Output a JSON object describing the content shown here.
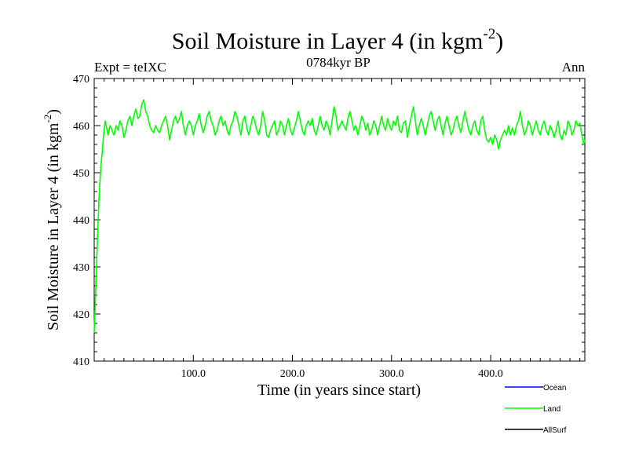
{
  "chart_data": {
    "type": "line",
    "title": "Soil Moisture in Layer 4 (in kgm",
    "title_superscript": "-2",
    "title_close": ")",
    "left_label": "Expt = teIXC",
    "center_label": "0784kyr BP",
    "right_label": "Ann",
    "xlabel": "Time (in years since start)",
    "ylabel": "Soil Moisture in Layer 4 (in kgm",
    "ylabel_superscript": "-2",
    "ylabel_close": ")",
    "xlim": [
      0,
      495
    ],
    "ylim": [
      410,
      470
    ],
    "x_ticks": [
      100,
      200,
      300,
      400
    ],
    "x_tick_labels": [
      "100.0",
      "200.0",
      "300.0",
      "400.0"
    ],
    "y_ticks": [
      410,
      420,
      430,
      440,
      450,
      460,
      470
    ],
    "y_tick_labels": [
      "410",
      "420",
      "430",
      "440",
      "450",
      "460",
      "470"
    ],
    "series": [
      {
        "name": "Ocean",
        "color": "#0000ff",
        "points": []
      },
      {
        "name": "Land",
        "color": "#00ff00",
        "points": [
          [
            0,
            416
          ],
          [
            1,
            422
          ],
          [
            2,
            428
          ],
          [
            3,
            434
          ],
          [
            4,
            440
          ],
          [
            5,
            445
          ],
          [
            6,
            449
          ],
          [
            7,
            452
          ],
          [
            8,
            454
          ],
          [
            9,
            457
          ],
          [
            10,
            459
          ],
          [
            11,
            461
          ],
          [
            12,
            460
          ],
          [
            14,
            458
          ],
          [
            16,
            460
          ],
          [
            18,
            459
          ],
          [
            20,
            458
          ],
          [
            22,
            460
          ],
          [
            24,
            459
          ],
          [
            26,
            461
          ],
          [
            28,
            460
          ],
          [
            30,
            457.5
          ],
          [
            32,
            459
          ],
          [
            34,
            461
          ],
          [
            36,
            462
          ],
          [
            38,
            460
          ],
          [
            40,
            462
          ],
          [
            42,
            463.5
          ],
          [
            44,
            461.5
          ],
          [
            46,
            462
          ],
          [
            48,
            464.5
          ],
          [
            50,
            465.5
          ],
          [
            52,
            463
          ],
          [
            54,
            462
          ],
          [
            56,
            460
          ],
          [
            58,
            459
          ],
          [
            60,
            458.5
          ],
          [
            62,
            460
          ],
          [
            64,
            459
          ],
          [
            66,
            458.5
          ],
          [
            68,
            460
          ],
          [
            70,
            461
          ],
          [
            72,
            462
          ],
          [
            74,
            460
          ],
          [
            76,
            457
          ],
          [
            78,
            459
          ],
          [
            80,
            461
          ],
          [
            82,
            462
          ],
          [
            84,
            460.5
          ],
          [
            86,
            461.5
          ],
          [
            88,
            463
          ],
          [
            90,
            460
          ],
          [
            92,
            458
          ],
          [
            94,
            460
          ],
          [
            96,
            461
          ],
          [
            98,
            460
          ],
          [
            100,
            458
          ],
          [
            102,
            460
          ],
          [
            104,
            461
          ],
          [
            106,
            462.5
          ],
          [
            108,
            460
          ],
          [
            110,
            458.5
          ],
          [
            112,
            460
          ],
          [
            114,
            462
          ],
          [
            116,
            463
          ],
          [
            118,
            461
          ],
          [
            120,
            460
          ],
          [
            122,
            458
          ],
          [
            124,
            459
          ],
          [
            126,
            461
          ],
          [
            128,
            462
          ],
          [
            130,
            460
          ],
          [
            132,
            461
          ],
          [
            134,
            459
          ],
          [
            136,
            458
          ],
          [
            138,
            460
          ],
          [
            140,
            461
          ],
          [
            142,
            463
          ],
          [
            144,
            462
          ],
          [
            146,
            460
          ],
          [
            148,
            458
          ],
          [
            150,
            461
          ],
          [
            152,
            462
          ],
          [
            154,
            459.5
          ],
          [
            156,
            458
          ],
          [
            158,
            460
          ],
          [
            160,
            462
          ],
          [
            162,
            461
          ],
          [
            164,
            459
          ],
          [
            166,
            458
          ],
          [
            168,
            460
          ],
          [
            170,
            463
          ],
          [
            172,
            461
          ],
          [
            174,
            458
          ],
          [
            176,
            457.5
          ],
          [
            178,
            459
          ],
          [
            180,
            460
          ],
          [
            182,
            461
          ],
          [
            184,
            458
          ],
          [
            186,
            459
          ],
          [
            188,
            461
          ],
          [
            190,
            460
          ],
          [
            192,
            458
          ],
          [
            194,
            460
          ],
          [
            196,
            461.5
          ],
          [
            198,
            459
          ],
          [
            200,
            458
          ],
          [
            202,
            459.5
          ],
          [
            204,
            461
          ],
          [
            206,
            463
          ],
          [
            208,
            461
          ],
          [
            210,
            459
          ],
          [
            212,
            458
          ],
          [
            214,
            460
          ],
          [
            216,
            461
          ],
          [
            218,
            460
          ],
          [
            220,
            461.5
          ],
          [
            222,
            459
          ],
          [
            224,
            458
          ],
          [
            226,
            460
          ],
          [
            228,
            462
          ],
          [
            230,
            460
          ],
          [
            232,
            459
          ],
          [
            234,
            461
          ],
          [
            236,
            460
          ],
          [
            238,
            458
          ],
          [
            240,
            461
          ],
          [
            242,
            464
          ],
          [
            244,
            462
          ],
          [
            246,
            459
          ],
          [
            248,
            460
          ],
          [
            250,
            461
          ],
          [
            252,
            460
          ],
          [
            254,
            459
          ],
          [
            256,
            461.5
          ],
          [
            258,
            463
          ],
          [
            260,
            461
          ],
          [
            262,
            459
          ],
          [
            264,
            460
          ],
          [
            266,
            458
          ],
          [
            268,
            460
          ],
          [
            270,
            462
          ],
          [
            272,
            461
          ],
          [
            274,
            459
          ],
          [
            276,
            460.5
          ],
          [
            278,
            458
          ],
          [
            280,
            459
          ],
          [
            282,
            461
          ],
          [
            284,
            460
          ],
          [
            286,
            458
          ],
          [
            288,
            460
          ],
          [
            290,
            462
          ],
          [
            292,
            460
          ],
          [
            294,
            459
          ],
          [
            296,
            461.5
          ],
          [
            298,
            460
          ],
          [
            300,
            459
          ],
          [
            302,
            461
          ],
          [
            304,
            460
          ],
          [
            306,
            462
          ],
          [
            308,
            459
          ],
          [
            310,
            458.5
          ],
          [
            312,
            460.5
          ],
          [
            314,
            461
          ],
          [
            316,
            457.5
          ],
          [
            318,
            460
          ],
          [
            320,
            462
          ],
          [
            322,
            464
          ],
          [
            324,
            461
          ],
          [
            326,
            458
          ],
          [
            328,
            460
          ],
          [
            330,
            461.5
          ],
          [
            332,
            460
          ],
          [
            334,
            458
          ],
          [
            336,
            460
          ],
          [
            338,
            462
          ],
          [
            340,
            463
          ],
          [
            342,
            461
          ],
          [
            344,
            459
          ],
          [
            346,
            461
          ],
          [
            348,
            462
          ],
          [
            350,
            460
          ],
          [
            352,
            458
          ],
          [
            354,
            460.5
          ],
          [
            356,
            462
          ],
          [
            358,
            460
          ],
          [
            360,
            458
          ],
          [
            362,
            459
          ],
          [
            364,
            461
          ],
          [
            366,
            462
          ],
          [
            368,
            460
          ],
          [
            370,
            458.5
          ],
          [
            372,
            461
          ],
          [
            374,
            463
          ],
          [
            376,
            461
          ],
          [
            378,
            459
          ],
          [
            380,
            458
          ],
          [
            382,
            460
          ],
          [
            384,
            461
          ],
          [
            386,
            459
          ],
          [
            388,
            458
          ],
          [
            390,
            461
          ],
          [
            392,
            462
          ],
          [
            394,
            459
          ],
          [
            396,
            457
          ],
          [
            398,
            456.5
          ],
          [
            400,
            457.5
          ],
          [
            402,
            456
          ],
          [
            404,
            458
          ],
          [
            406,
            457
          ],
          [
            408,
            455
          ],
          [
            410,
            457
          ],
          [
            412,
            458
          ],
          [
            414,
            459
          ],
          [
            416,
            458
          ],
          [
            418,
            460
          ],
          [
            420,
            458
          ],
          [
            422,
            459.5
          ],
          [
            424,
            458
          ],
          [
            426,
            460
          ],
          [
            428,
            461
          ],
          [
            430,
            463
          ],
          [
            432,
            460
          ],
          [
            434,
            458
          ],
          [
            436,
            459
          ],
          [
            438,
            461
          ],
          [
            440,
            460
          ],
          [
            442,
            458
          ],
          [
            444,
            459.5
          ],
          [
            446,
            461
          ],
          [
            448,
            459
          ],
          [
            450,
            458
          ],
          [
            452,
            460
          ],
          [
            454,
            461
          ],
          [
            456,
            459
          ],
          [
            458,
            458
          ],
          [
            460,
            460
          ],
          [
            462,
            459
          ],
          [
            464,
            457.5
          ],
          [
            466,
            459
          ],
          [
            468,
            461
          ],
          [
            470,
            458
          ],
          [
            472,
            457
          ],
          [
            474,
            459
          ],
          [
            476,
            458
          ],
          [
            478,
            461
          ],
          [
            480,
            460
          ],
          [
            482,
            458
          ],
          [
            484,
            459
          ],
          [
            486,
            461
          ],
          [
            488,
            460
          ],
          [
            490,
            460.5
          ],
          [
            492,
            458
          ],
          [
            494,
            456
          ],
          [
            495,
            457
          ]
        ]
      },
      {
        "name": "AllSurf",
        "color": "#000000",
        "points": []
      }
    ]
  }
}
